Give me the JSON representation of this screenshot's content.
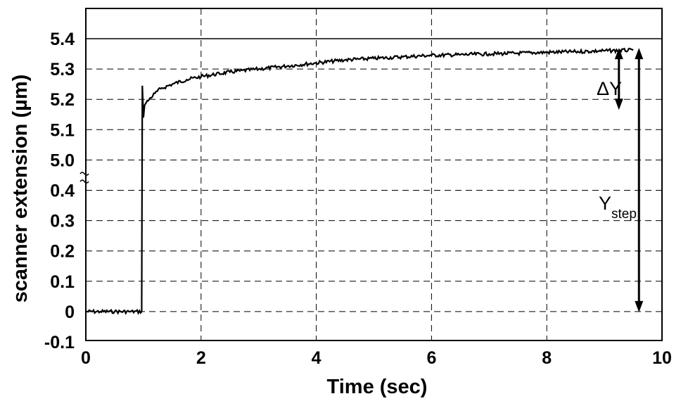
{
  "chart_data": {
    "type": "line",
    "title": "",
    "xlabel": "Time (sec)",
    "ylabel": "scanner extension (µm)",
    "xlim": [
      0,
      10
    ],
    "x_ticks": [
      "0",
      "2",
      "4",
      "6",
      "8",
      "10"
    ],
    "y_ticks": [
      "-0.1",
      "0",
      "0.1",
      "0.2",
      "0.3",
      "0.4",
      "5.0",
      "5.1",
      "5.2",
      "5.3",
      "5.4"
    ],
    "y_axis_break": "between 0.4 and 5.0",
    "grid": true,
    "grid_style": "dashed",
    "reference_line_y": 5.4,
    "series": [
      {
        "x": [
          0,
          0.25,
          0.5,
          0.75,
          0.97,
          0.98,
          1.0,
          1.02,
          1.05,
          1.1,
          1.2,
          1.3,
          1.5,
          1.75,
          2.0,
          2.5,
          3.0,
          3.5,
          4.0,
          4.5,
          5.0,
          5.5,
          6.0,
          6.5,
          7.0,
          7.5,
          8.0,
          8.5,
          9.0,
          9.5
        ],
        "y": [
          0,
          0,
          0,
          0,
          0,
          5.245,
          5.14,
          5.18,
          5.19,
          5.2,
          5.22,
          5.235,
          5.25,
          5.265,
          5.275,
          5.29,
          5.3,
          5.31,
          5.32,
          5.33,
          5.335,
          5.34,
          5.345,
          5.347,
          5.35,
          5.352,
          5.355,
          5.357,
          5.36,
          5.362
        ]
      }
    ],
    "annotations": [
      {
        "text": "ΔY",
        "from_y": 5.365,
        "to_y": 5.165,
        "x": 9.35
      },
      {
        "text": "Y",
        "subscript": "step",
        "from_y": 5.365,
        "to_y": 0,
        "x": 9.6
      }
    ]
  }
}
